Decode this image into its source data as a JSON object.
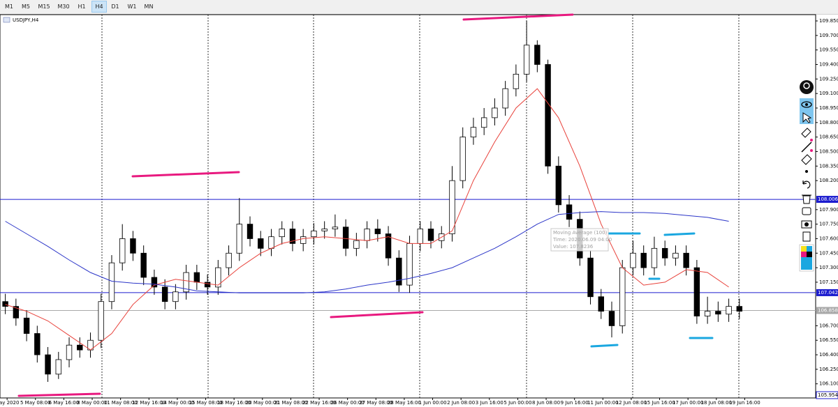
{
  "toolbar": {
    "timeframes": [
      "M1",
      "M5",
      "M15",
      "M30",
      "H1",
      "H4",
      "D1",
      "W1",
      "MN"
    ],
    "selected": "H4"
  },
  "chart_data": {
    "type": "candlestick",
    "title": "USDJPY,H4",
    "x": [
      6,
      18,
      30,
      42,
      54,
      66,
      78,
      90,
      102,
      114,
      126,
      138,
      150,
      162,
      174,
      186,
      198,
      210,
      222,
      234,
      246,
      258,
      270,
      282,
      294,
      306,
      318,
      330,
      342,
      354,
      366,
      378,
      390,
      402,
      414,
      426,
      438,
      450,
      462,
      474,
      486,
      498,
      510,
      522,
      534,
      546,
      558,
      570,
      582,
      594,
      606,
      618,
      630,
      642,
      654,
      666,
      678,
      690,
      702,
      714,
      726,
      738,
      750,
      762,
      774,
      786,
      798,
      810,
      822,
      834
    ],
    "open": [
      106.95,
      106.9,
      106.78,
      106.62,
      106.4,
      106.2,
      106.35,
      106.5,
      106.45,
      106.55,
      106.95,
      107.35,
      107.6,
      107.45,
      107.2,
      107.1,
      106.95,
      107.05,
      107.25,
      107.15,
      107.1,
      107.3,
      107.45,
      107.75,
      107.6,
      107.5,
      107.62,
      107.7,
      107.55,
      107.62,
      107.68,
      107.7,
      107.72,
      107.5,
      107.58,
      107.7,
      107.65,
      107.4,
      107.12,
      107.55,
      107.7,
      107.58,
      107.65,
      108.2,
      108.65,
      108.75,
      108.85,
      108.95,
      109.15,
      109.3,
      109.6,
      109.4,
      108.35,
      107.95,
      107.8,
      107.4,
      107.0,
      106.85,
      106.7,
      107.3,
      107.45,
      107.3,
      107.5,
      107.4,
      107.45,
      107.3,
      106.8,
      106.85,
      106.82,
      106.9
    ],
    "high": [
      107.03,
      106.98,
      106.86,
      106.7,
      106.48,
      106.43,
      106.58,
      106.58,
      106.63,
      107.03,
      107.43,
      107.75,
      107.68,
      107.53,
      107.28,
      107.18,
      107.13,
      107.33,
      107.33,
      107.23,
      107.38,
      107.53,
      108.02,
      107.83,
      107.68,
      107.7,
      107.78,
      107.78,
      107.7,
      107.76,
      107.78,
      107.85,
      107.8,
      107.66,
      107.78,
      107.8,
      107.73,
      107.48,
      107.63,
      107.78,
      107.78,
      107.73,
      108.35,
      108.75,
      108.85,
      108.95,
      109.05,
      109.23,
      109.4,
      109.85,
      109.65,
      109.45,
      108.45,
      108.05,
      107.88,
      107.48,
      107.08,
      106.95,
      107.38,
      107.58,
      107.53,
      107.62,
      107.58,
      107.53,
      107.53,
      107.38,
      107.0,
      106.95,
      106.98,
      106.98
    ],
    "low": [
      106.82,
      106.7,
      106.54,
      106.32,
      106.12,
      106.15,
      106.27,
      106.37,
      106.37,
      106.47,
      106.87,
      107.27,
      107.37,
      107.12,
      107.02,
      106.87,
      106.87,
      106.97,
      107.07,
      107.02,
      107.02,
      107.22,
      107.37,
      107.52,
      107.42,
      107.42,
      107.54,
      107.47,
      107.47,
      107.54,
      107.6,
      107.62,
      107.42,
      107.42,
      107.5,
      107.57,
      107.32,
      107.05,
      107.04,
      107.47,
      107.5,
      107.5,
      107.57,
      108.12,
      108.57,
      108.67,
      108.77,
      108.87,
      109.07,
      109.22,
      109.32,
      108.27,
      107.87,
      107.72,
      107.32,
      106.92,
      106.77,
      106.58,
      106.62,
      107.22,
      107.22,
      107.22,
      107.32,
      107.32,
      107.22,
      106.72,
      106.72,
      106.74,
      106.74,
      106.77
    ],
    "close": [
      106.9,
      106.78,
      106.62,
      106.4,
      106.2,
      106.35,
      106.5,
      106.45,
      106.55,
      106.95,
      107.35,
      107.6,
      107.45,
      107.2,
      107.1,
      106.95,
      107.05,
      107.25,
      107.15,
      107.1,
      107.3,
      107.45,
      107.75,
      107.6,
      107.5,
      107.62,
      107.7,
      107.55,
      107.62,
      107.68,
      107.7,
      107.72,
      107.5,
      107.58,
      107.7,
      107.65,
      107.4,
      107.12,
      107.55,
      107.7,
      107.58,
      107.65,
      108.2,
      108.65,
      108.75,
      108.85,
      108.95,
      109.15,
      109.3,
      109.6,
      109.4,
      108.35,
      107.95,
      107.8,
      107.4,
      107.0,
      106.85,
      106.7,
      107.3,
      107.45,
      107.3,
      107.5,
      107.4,
      107.45,
      107.3,
      106.8,
      106.85,
      106.82,
      106.9,
      106.85
    ],
    "up_color": "#ffffff",
    "down_color": "#000000",
    "lines": [
      {
        "color": "#e8413a",
        "x": [
          6,
          30,
          54,
          78,
          102,
          126,
          150,
          174,
          198,
          222,
          246,
          270,
          294,
          318,
          342,
          366,
          390,
          414,
          438,
          462,
          486,
          510,
          534,
          558,
          582,
          606,
          630,
          654,
          678,
          702,
          726,
          750,
          774,
          798,
          822
        ],
        "values": [
          106.92,
          106.85,
          106.75,
          106.6,
          106.45,
          106.62,
          106.92,
          107.12,
          107.18,
          107.15,
          107.12,
          107.3,
          107.45,
          107.55,
          107.6,
          107.62,
          107.6,
          107.58,
          107.62,
          107.55,
          107.55,
          107.68,
          108.2,
          108.6,
          108.95,
          109.15,
          108.85,
          108.35,
          107.75,
          107.3,
          107.12,
          107.15,
          107.28,
          107.25,
          107.1
        ]
      },
      {
        "color": "#2b35c8",
        "x": [
          6,
          30,
          54,
          78,
          102,
          126,
          150,
          174,
          198,
          222,
          246,
          270,
          294,
          318,
          342,
          366,
          390,
          414,
          438,
          462,
          486,
          510,
          534,
          558,
          582,
          606,
          630,
          654,
          678,
          702,
          726,
          750,
          774,
          798,
          822
        ],
        "values": [
          107.78,
          107.65,
          107.52,
          107.38,
          107.25,
          107.16,
          107.14,
          107.13,
          107.1,
          107.06,
          107.05,
          107.04,
          107.04,
          107.04,
          107.04,
          107.05,
          107.08,
          107.12,
          107.15,
          107.19,
          107.24,
          107.3,
          107.4,
          107.5,
          107.62,
          107.75,
          107.85,
          107.87,
          107.88,
          107.87,
          107.87,
          107.86,
          107.84,
          107.82,
          107.78
        ]
      }
    ],
    "xlim": [
      0,
      920
    ],
    "ylim": [
      105.954,
      109.915
    ],
    "xticks": [
      {
        "value": 8,
        "label": "May 2020"
      },
      {
        "value": 40,
        "label": "5 May 08:00"
      },
      {
        "value": 72,
        "label": "6 May 16:00"
      },
      {
        "value": 104,
        "label": "8 May 00:00"
      },
      {
        "value": 136,
        "label": "11 May 08:00"
      },
      {
        "value": 168,
        "label": "12 May 16:00"
      },
      {
        "value": 200,
        "label": "14 May 00:00"
      },
      {
        "value": 232,
        "label": "15 May 08:00"
      },
      {
        "value": 264,
        "label": "18 May 16:00"
      },
      {
        "value": 296,
        "label": "20 May 00:00"
      },
      {
        "value": 328,
        "label": "21 May 08:00"
      },
      {
        "value": 360,
        "label": "22 May 16:00"
      },
      {
        "value": 392,
        "label": "26 May 00:00"
      },
      {
        "value": 424,
        "label": "27 May 08:00"
      },
      {
        "value": 456,
        "label": "28 May 16:00"
      },
      {
        "value": 488,
        "label": "1 Jun 00:00"
      },
      {
        "value": 520,
        "label": "2 Jun 08:00"
      },
      {
        "value": 552,
        "label": "3 Jun 16:00"
      },
      {
        "value": 584,
        "label": "5 Jun 00:00"
      },
      {
        "value": 616,
        "label": "8 Jun 08:00"
      },
      {
        "value": 648,
        "label": "9 Jun 16:00"
      },
      {
        "value": 680,
        "label": "11 Jun 00:00"
      },
      {
        "value": 712,
        "label": "12 Jun 08:00"
      },
      {
        "value": 744,
        "label": "15 Jun 16:00"
      },
      {
        "value": 776,
        "label": "17 Jun 00:00"
      },
      {
        "value": 808,
        "label": "18 Jun 08:00"
      },
      {
        "value": 840,
        "label": "19 Jun 16:00"
      }
    ],
    "yticks": [
      {
        "value": 109.85,
        "label": "109.850"
      },
      {
        "value": 109.7,
        "label": "109.700"
      },
      {
        "value": 109.55,
        "label": "109.550"
      },
      {
        "value": 109.4,
        "label": "109.400"
      },
      {
        "value": 109.25,
        "label": "109.250"
      },
      {
        "value": 109.1,
        "label": "109.100"
      },
      {
        "value": 108.95,
        "label": "108.950"
      },
      {
        "value": 108.8,
        "label": "108.800"
      },
      {
        "value": 108.65,
        "label": "108.650"
      },
      {
        "value": 108.5,
        "label": "108.500"
      },
      {
        "value": 108.35,
        "label": "108.350"
      },
      {
        "value": 108.2,
        "label": "108.200"
      },
      {
        "value": 107.9,
        "label": "107.900"
      },
      {
        "value": 107.75,
        "label": "107.750"
      },
      {
        "value": 107.6,
        "label": "107.600"
      },
      {
        "value": 107.45,
        "label": "107.450"
      },
      {
        "value": 107.3,
        "label": "107.300"
      },
      {
        "value": 107.15,
        "label": "107.150"
      },
      {
        "value": 106.7,
        "label": "106.700"
      },
      {
        "value": 106.55,
        "label": "106.550"
      },
      {
        "value": 106.4,
        "label": "106.400"
      },
      {
        "value": 106.25,
        "label": "106.250"
      },
      {
        "value": 106.1,
        "label": "106.100"
      }
    ],
    "hlines": [
      {
        "value": 108.006,
        "label": "108.006",
        "color": "#1c1ccf"
      },
      {
        "value": 107.042,
        "label": "107.042",
        "color": "#1c1ccf"
      },
      {
        "value": 106.858,
        "label": "106.858",
        "color": "#a8a8a8"
      }
    ],
    "price_boxes": [
      {
        "value": 105.954,
        "label": "105.954",
        "color": "#1c1ccf"
      }
    ],
    "tooltip": [
      "Moving Average (100)",
      "Time: 2020.06.09 04:00",
      "Value: 107.8236"
    ]
  }
}
